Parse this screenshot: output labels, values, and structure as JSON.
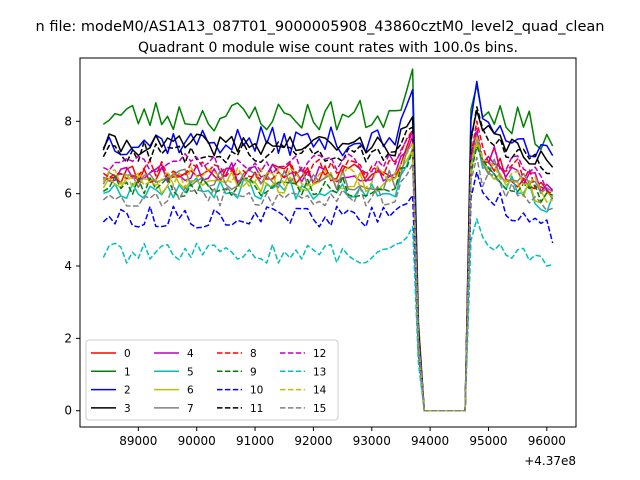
{
  "figure": {
    "suptitle": "n file: modeM0/AS1A13_087T01_9000005908_43860cztM0_level2_quad_clean",
    "title": "Quadrant 0 module wise count rates with 100.0s bins."
  },
  "chart_data": {
    "type": "line",
    "title": "Quadrant 0 module wise count rates with 100.0s bins.",
    "xlabel": "",
    "ylabel": "",
    "x_offset_label": "+4.37e8",
    "xlim": [
      88000,
      96500
    ],
    "ylim": [
      -0.45,
      9.75
    ],
    "x_ticks": [
      89000,
      90000,
      91000,
      92000,
      93000,
      94000,
      95000,
      96000
    ],
    "x_tick_labels": [
      "89000",
      "90000",
      "91000",
      "92000",
      "93000",
      "94000",
      "95000",
      "96000"
    ],
    "y_ticks": [
      0,
      2,
      4,
      6,
      8
    ],
    "y_tick_labels": [
      "0",
      "2",
      "4",
      "6",
      "8"
    ],
    "grid": false,
    "legend_position": "lower-left",
    "legend_columns": 4,
    "segments_x": {
      "first": {
        "start": 88400,
        "end": 93750,
        "step": 100
      },
      "drop": [
        93800,
        93900
      ],
      "gap": [
        94600
      ],
      "second": {
        "start": 94700,
        "end": 96100,
        "step": 100
      }
    },
    "series": [
      {
        "name": "0",
        "color": "#ff0000",
        "dash": "solid",
        "level": 6.55,
        "noise": 0.3,
        "end_peak": 7.7,
        "post_level": 6.9,
        "post_peak": 7.7,
        "seed": 11
      },
      {
        "name": "1",
        "color": "#008000",
        "dash": "solid",
        "level": 8.15,
        "noise": 0.45,
        "end_peak": 9.45,
        "post_level": 8.5,
        "post_peak": 9.0,
        "seed": 23
      },
      {
        "name": "2",
        "color": "#0000ff",
        "dash": "solid",
        "level": 7.45,
        "noise": 0.4,
        "end_peak": 8.9,
        "post_level": 8.2,
        "post_peak": 9.1,
        "seed": 37
      },
      {
        "name": "3",
        "color": "#000000",
        "dash": "solid",
        "level": 7.35,
        "noise": 0.3,
        "end_peak": 8.1,
        "post_level": 7.7,
        "post_peak": 8.3,
        "seed": 41
      },
      {
        "name": "4",
        "color": "#bf00bf",
        "dash": "solid",
        "level": 6.6,
        "noise": 0.3,
        "end_peak": 7.6,
        "post_level": 7.0,
        "post_peak": 7.7,
        "seed": 53
      },
      {
        "name": "5",
        "color": "#00bfbf",
        "dash": "solid",
        "level": 6.15,
        "noise": 0.3,
        "end_peak": 7.3,
        "post_level": 6.7,
        "post_peak": 7.5,
        "seed": 67
      },
      {
        "name": "6",
        "color": "#bfbf00",
        "dash": "solid",
        "level": 6.3,
        "noise": 0.3,
        "end_peak": 7.2,
        "post_level": 6.8,
        "post_peak": 7.4,
        "seed": 71
      },
      {
        "name": "7",
        "color": "#808080",
        "dash": "solid",
        "level": 6.4,
        "noise": 0.3,
        "end_peak": 7.4,
        "post_level": 6.9,
        "post_peak": 7.6,
        "seed": 83
      },
      {
        "name": "8",
        "color": "#ff0000",
        "dash": "dashed",
        "level": 6.7,
        "noise": 0.3,
        "end_peak": 7.8,
        "post_level": 7.2,
        "post_peak": 8.0,
        "seed": 97
      },
      {
        "name": "9",
        "color": "#008000",
        "dash": "dashed",
        "level": 6.2,
        "noise": 0.3,
        "end_peak": 7.2,
        "post_level": 6.7,
        "post_peak": 7.3,
        "seed": 101
      },
      {
        "name": "10",
        "color": "#0000ff",
        "dash": "dashed",
        "level": 5.35,
        "noise": 0.3,
        "end_peak": 6.0,
        "post_level": 6.0,
        "post_peak": 6.6,
        "seed": 113
      },
      {
        "name": "11",
        "color": "#000000",
        "dash": "dashed",
        "level": 7.15,
        "noise": 0.3,
        "end_peak": 7.9,
        "post_level": 7.6,
        "post_peak": 8.4,
        "seed": 127
      },
      {
        "name": "12",
        "color": "#bf00bf",
        "dash": "dashed",
        "level": 6.85,
        "noise": 0.3,
        "end_peak": 7.7,
        "post_level": 7.2,
        "post_peak": 7.8,
        "seed": 131
      },
      {
        "name": "13",
        "color": "#00bfbf",
        "dash": "dashed",
        "level": 4.35,
        "noise": 0.28,
        "end_peak": 5.0,
        "post_level": 4.8,
        "post_peak": 5.3,
        "seed": 139
      },
      {
        "name": "14",
        "color": "#bfbf00",
        "dash": "dashed",
        "level": 6.45,
        "noise": 0.3,
        "end_peak": 7.4,
        "post_level": 6.9,
        "post_peak": 7.6,
        "seed": 149
      },
      {
        "name": "15",
        "color": "#808080",
        "dash": "dashed",
        "level": 5.95,
        "noise": 0.3,
        "end_peak": 6.9,
        "post_level": 6.5,
        "post_peak": 7.0,
        "seed": 157
      }
    ]
  }
}
